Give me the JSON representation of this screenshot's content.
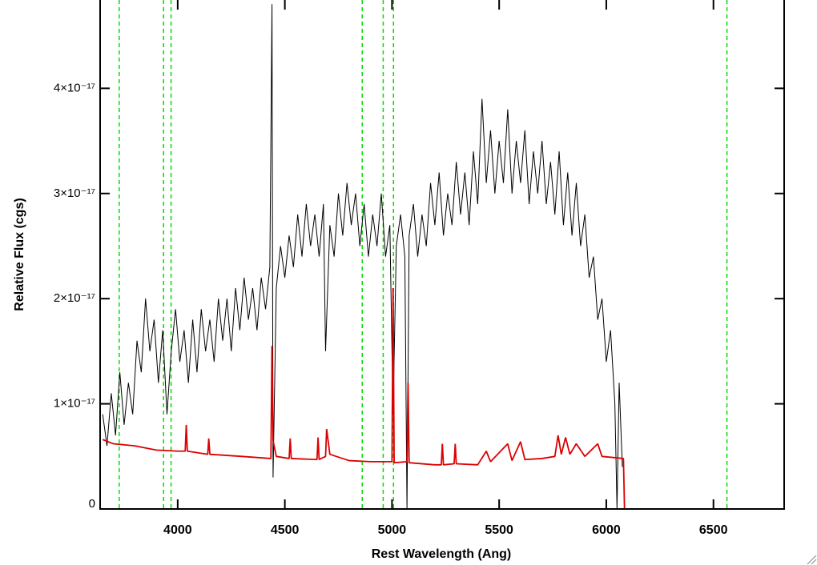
{
  "chart_data": {
    "type": "line",
    "x_label": "Rest Wavelength (Ang)",
    "y_label": "Relative Flux (cgs)",
    "xlim": [
      3638,
      6830
    ],
    "ylim": [
      0,
      4.84e-17
    ],
    "xticks": [
      4000,
      4500,
      5000,
      5500,
      6000,
      6500
    ],
    "yticks": [
      0,
      {
        "value": 1e-17,
        "label": "1×10⁻¹⁷"
      },
      {
        "value": 2e-17,
        "label": "2×10⁻¹⁷"
      },
      {
        "value": 3e-17,
        "label": "3×10⁻¹⁷"
      },
      {
        "value": 4e-17,
        "label": "4×10⁻¹⁷"
      }
    ],
    "vlines": [
      3727,
      3934,
      3969,
      4861,
      4959,
      5007,
      6563
    ],
    "vline_color": "#00dd00",
    "series": [
      {
        "color": "#000000",
        "x": [
          3650,
          3670,
          3690,
          3710,
          3730,
          3750,
          3770,
          3790,
          3810,
          3830,
          3850,
          3870,
          3890,
          3910,
          3930,
          3950,
          3970,
          3990,
          4010,
          4030,
          4050,
          4070,
          4090,
          4110,
          4130,
          4150,
          4170,
          4190,
          4210,
          4230,
          4250,
          4270,
          4290,
          4310,
          4330,
          4350,
          4370,
          4390,
          4410,
          4430,
          4440,
          4445,
          4460,
          4480,
          4500,
          4520,
          4540,
          4560,
          4580,
          4600,
          4620,
          4640,
          4660,
          4680,
          4690,
          4710,
          4730,
          4750,
          4770,
          4790,
          4810,
          4830,
          4850,
          4870,
          4890,
          4910,
          4930,
          4950,
          4970,
          4990,
          5005,
          5020,
          5040,
          5060,
          5070,
          5080,
          5100,
          5120,
          5140,
          5160,
          5180,
          5200,
          5220,
          5240,
          5260,
          5280,
          5300,
          5320,
          5340,
          5360,
          5380,
          5400,
          5420,
          5440,
          5460,
          5480,
          5500,
          5520,
          5540,
          5560,
          5580,
          5600,
          5620,
          5640,
          5660,
          5680,
          5700,
          5720,
          5740,
          5760,
          5780,
          5800,
          5820,
          5840,
          5860,
          5880,
          5900,
          5920,
          5940,
          5960,
          5980,
          6000,
          6020,
          6040,
          6050,
          6060,
          6075
        ],
        "values": [
          9e-18,
          6e-18,
          1.1e-17,
          7e-18,
          1.3e-17,
          8e-18,
          1.2e-17,
          9e-18,
          1.6e-17,
          1.3e-17,
          2e-17,
          1.5e-17,
          1.8e-17,
          1.2e-17,
          1.7e-17,
          9e-18,
          1.5e-17,
          1.9e-17,
          1.4e-17,
          1.7e-17,
          1.2e-17,
          1.8e-17,
          1.3e-17,
          1.9e-17,
          1.5e-17,
          1.8e-17,
          1.4e-17,
          2e-17,
          1.6e-17,
          2e-17,
          1.5e-17,
          2.1e-17,
          1.7e-17,
          2.2e-17,
          1.8e-17,
          2.1e-17,
          1.7e-17,
          2.2e-17,
          1.9e-17,
          2.3e-17,
          4.8e-17,
          3e-18,
          2.1e-17,
          2.5e-17,
          2.2e-17,
          2.6e-17,
          2.3e-17,
          2.8e-17,
          2.4e-17,
          2.9e-17,
          2.5e-17,
          2.8e-17,
          2.4e-17,
          2.9e-17,
          1.5e-17,
          2.7e-17,
          2.4e-17,
          3e-17,
          2.6e-17,
          3.1e-17,
          2.7e-17,
          3e-17,
          2.5e-17,
          2.9e-17,
          2.4e-17,
          2.8e-17,
          2.5e-17,
          3e-17,
          2.4e-17,
          2.7e-17,
          9e-18,
          2.5e-17,
          2.8e-17,
          2.4e-17,
          0,
          2.6e-17,
          2.9e-17,
          2.4e-17,
          2.8e-17,
          2.5e-17,
          3.1e-17,
          2.7e-17,
          3.2e-17,
          2.6e-17,
          3e-17,
          2.7e-17,
          3.3e-17,
          2.8e-17,
          3.2e-17,
          2.7e-17,
          3.4e-17,
          2.9e-17,
          3.9e-17,
          3.1e-17,
          3.6e-17,
          3e-17,
          3.5e-17,
          3.1e-17,
          3.8e-17,
          3e-17,
          3.5e-17,
          3.1e-17,
          3.6e-17,
          2.9e-17,
          3.4e-17,
          3e-17,
          3.5e-17,
          2.9e-17,
          3.3e-17,
          2.8e-17,
          3.4e-17,
          2.7e-17,
          3.2e-17,
          2.6e-17,
          3.1e-17,
          2.5e-17,
          2.8e-17,
          2.2e-17,
          2.4e-17,
          1.8e-17,
          2e-17,
          1.4e-17,
          1.7e-17,
          1e-17,
          0,
          1.2e-17,
          4e-18
        ]
      },
      {
        "color": "#dd0000",
        "x": [
          3650,
          3700,
          3800,
          3900,
          4000,
          4035,
          4040,
          4045,
          4140,
          4145,
          4150,
          4300,
          4435,
          4440,
          4445,
          4460,
          4520,
          4525,
          4530,
          4650,
          4655,
          4660,
          4690,
          4695,
          4710,
          4800,
          4900,
          5000,
          5005,
          5010,
          5070,
          5075,
          5080,
          5200,
          5230,
          5235,
          5240,
          5290,
          5295,
          5300,
          5400,
          5440,
          5460,
          5540,
          5560,
          5600,
          5620,
          5700,
          5760,
          5775,
          5790,
          5810,
          5830,
          5860,
          5900,
          5960,
          5980,
          6080,
          6085,
          6830
        ],
        "values": [
          6.6e-18,
          6.2e-18,
          6e-18,
          5.6e-18,
          5.5e-18,
          5.5e-18,
          8e-18,
          5.5e-18,
          5.2e-18,
          6.7e-18,
          5.2e-18,
          5e-18,
          4.8e-18,
          1.55e-17,
          6.5e-18,
          5e-18,
          4.8e-18,
          6.7e-18,
          4.8e-18,
          4.7e-18,
          6.8e-18,
          4.7e-18,
          5e-18,
          7.6e-18,
          5.2e-18,
          4.6e-18,
          4.5e-18,
          4.5e-18,
          2.1e-17,
          4.4e-18,
          4.5e-18,
          1.2e-17,
          4.4e-18,
          4.2e-18,
          4.2e-18,
          6.2e-18,
          4.2e-18,
          4.3e-18,
          6.2e-18,
          4.3e-18,
          4.2e-18,
          5.5e-18,
          4.5e-18,
          6.2e-18,
          4.6e-18,
          6.4e-18,
          4.7e-18,
          4.8e-18,
          5e-18,
          7e-18,
          5.2e-18,
          6.8e-18,
          5.2e-18,
          6.2e-18,
          5e-18,
          6.2e-18,
          5e-18,
          4.8e-18,
          0,
          0
        ]
      }
    ]
  }
}
